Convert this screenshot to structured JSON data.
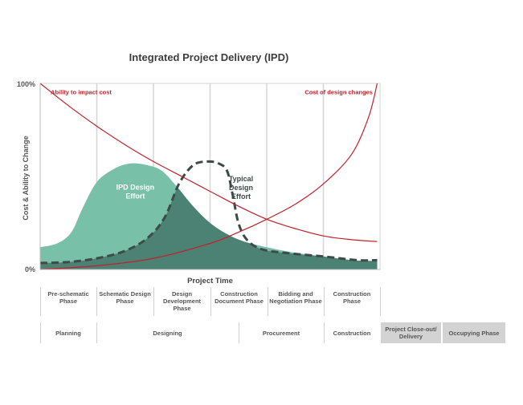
{
  "title": "Integrated Project Delivery (IPD)",
  "chart_data": {
    "type": "area",
    "title": "Integrated Project Delivery (IPD)",
    "xlabel": "Project Time",
    "ylabel": "Cost & Ability to Change",
    "ylim": [
      0,
      100
    ],
    "xlim": [
      0,
      6
    ],
    "y_ticks": [
      "0%",
      "100%"
    ],
    "grid": "vertical phase lines",
    "colors": {
      "ipd": "#79c0a8",
      "typical_fill": "#4b8274",
      "typical_line": "#3e4a48",
      "cost_lines": "#c0222c"
    },
    "series": [
      {
        "name": "IPD Design Effort",
        "style": "filled-area",
        "points": [
          [
            0,
            12
          ],
          [
            0.3,
            14
          ],
          [
            0.55,
            20
          ],
          [
            0.75,
            33
          ],
          [
            1.0,
            47
          ],
          [
            1.3,
            54
          ],
          [
            1.6,
            57
          ],
          [
            1.9,
            56
          ],
          [
            2.15,
            53
          ],
          [
            2.4,
            45
          ],
          [
            2.7,
            34
          ],
          [
            3.0,
            25
          ],
          [
            3.3,
            19
          ],
          [
            3.6,
            15
          ],
          [
            4.0,
            12
          ],
          [
            4.5,
            9
          ],
          [
            5.0,
            7
          ],
          [
            5.5,
            5
          ],
          [
            5.95,
            4.5
          ]
        ]
      },
      {
        "name": "Typical Design Effort",
        "style": "dashed-line",
        "points": [
          [
            0,
            3.5
          ],
          [
            0.5,
            4
          ],
          [
            1.0,
            6
          ],
          [
            1.5,
            10
          ],
          [
            1.9,
            17
          ],
          [
            2.2,
            28
          ],
          [
            2.45,
            46
          ],
          [
            2.7,
            56
          ],
          [
            2.95,
            58
          ],
          [
            3.15,
            57
          ],
          [
            3.3,
            53
          ],
          [
            3.4,
            40
          ],
          [
            3.5,
            25
          ],
          [
            3.65,
            16
          ],
          [
            3.9,
            11
          ],
          [
            4.3,
            9
          ],
          [
            5.0,
            7
          ],
          [
            5.6,
            5
          ],
          [
            5.95,
            5
          ]
        ]
      },
      {
        "name": "Ability to impact cost",
        "style": "line",
        "points": [
          [
            0,
            100
          ],
          [
            0.5,
            88
          ],
          [
            1.0,
            77
          ],
          [
            1.5,
            67
          ],
          [
            2.0,
            58
          ],
          [
            2.5,
            50
          ],
          [
            3.0,
            42
          ],
          [
            3.5,
            34
          ],
          [
            4.0,
            27
          ],
          [
            4.5,
            22
          ],
          [
            5.0,
            18
          ],
          [
            5.5,
            16
          ],
          [
            5.95,
            15
          ]
        ]
      },
      {
        "name": "Cost of design changes",
        "style": "line",
        "points": [
          [
            0,
            0
          ],
          [
            1.0,
            2
          ],
          [
            2.0,
            6
          ],
          [
            3.0,
            14
          ],
          [
            3.5,
            20
          ],
          [
            4.0,
            27
          ],
          [
            4.5,
            35
          ],
          [
            5.0,
            46
          ],
          [
            5.5,
            62
          ],
          [
            5.8,
            82
          ],
          [
            5.95,
            100
          ]
        ]
      }
    ],
    "annotations": [
      {
        "text": "Ability to impact cost",
        "x": 0.1,
        "y": 95
      },
      {
        "text": "Cost of design changes",
        "x": 5.9,
        "y": 95
      },
      {
        "text": "IPD Design Effort",
        "x": 1.85,
        "y": 42
      },
      {
        "text": "Typical Design Effort",
        "x": 3.5,
        "y": 44
      }
    ]
  },
  "phases": [
    "Pre-schematic Phase",
    "Schematic Design Phase",
    "Design Development Phase",
    "Construction Document Phase",
    "Bidding and Negotiation Phase",
    "Construction Phase"
  ],
  "stages": [
    "Planning",
    "Designing",
    "Procurement",
    "Construction",
    "Project Close-out/ Delivery",
    "Occupying Phase"
  ]
}
